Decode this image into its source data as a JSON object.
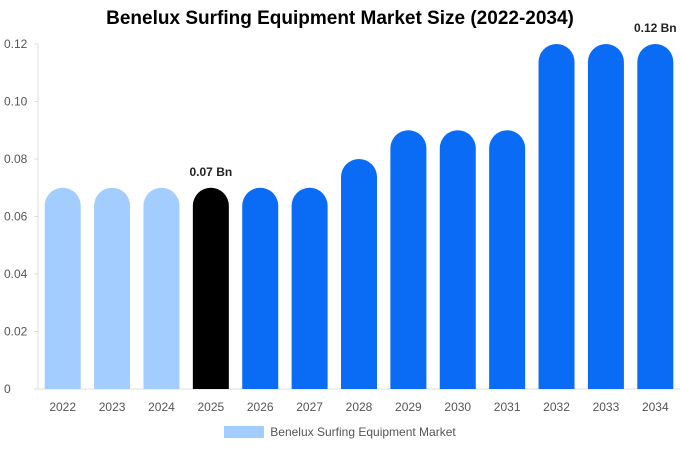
{
  "chart_data": {
    "type": "bar",
    "title": "Benelux Surfing Equipment Market Size (2022-2034)",
    "xlabel": "",
    "ylabel": "",
    "ylim": [
      0,
      0.12
    ],
    "yticks": [
      "0",
      "0.02",
      "0.04",
      "0.06",
      "0.08",
      "0.10",
      "0.12"
    ],
    "categories": [
      "2022",
      "2023",
      "2024",
      "2025",
      "2026",
      "2027",
      "2028",
      "2029",
      "2030",
      "2031",
      "2032",
      "2033",
      "2034"
    ],
    "series": [
      {
        "name": "Benelux Surfing Equipment Market",
        "values": [
          0.07,
          0.07,
          0.07,
          0.07,
          0.07,
          0.07,
          0.08,
          0.09,
          0.09,
          0.09,
          0.12,
          0.12,
          0.12
        ]
      }
    ],
    "bar_colors": [
      "#a3cdfe",
      "#a3cdfe",
      "#a3cdfe",
      "#000000",
      "#0a6cf5",
      "#0a6cf5",
      "#0a6cf5",
      "#0a6cf5",
      "#0a6cf5",
      "#0a6cf5",
      "#0a6cf5",
      "#0a6cf5",
      "#0a6cf5"
    ],
    "data_labels": [
      {
        "category": "2025",
        "text": "0.07 Bn"
      },
      {
        "category": "2034",
        "text": "0.12 Bn"
      }
    ],
    "legend_position": "bottom",
    "legend_color": "#a3cdfe",
    "grid": false
  }
}
